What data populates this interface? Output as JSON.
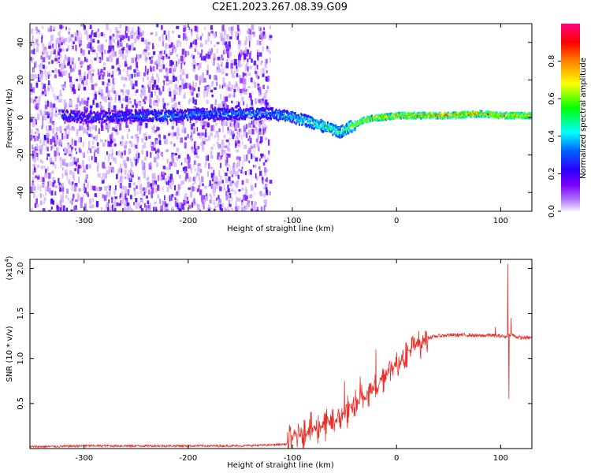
{
  "figure": {
    "title": "C2E1.2023.267.08.39.G09"
  },
  "chart_data": [
    {
      "type": "heatmap",
      "xlabel": "Height of straight line (km)",
      "ylabel": "Frequency (Hz)",
      "xlim": [
        -352,
        130
      ],
      "ylim": [
        -50,
        50
      ],
      "x_ticks": [
        -300,
        -200,
        -100,
        0,
        100
      ],
      "x_tick_labels": [
        "-300",
        "-200",
        "-100",
        "0",
        "100"
      ],
      "y_ticks": [
        -40,
        -20,
        0,
        20,
        40
      ],
      "y_tick_labels": [
        "-40",
        "-20",
        "0",
        "20",
        "40"
      ],
      "colorbar": {
        "label": "Normalized spectral amplitude",
        "range": [
          0,
          1
        ],
        "ticks": [
          0.0,
          0.2,
          0.4,
          0.6,
          0.8
        ],
        "tick_labels": [
          "0.0",
          "0.2",
          "0.4",
          "0.6",
          "0.8"
        ],
        "colors": [
          "#f8f0ff",
          "#7a00ff",
          "#0000ff",
          "#00ffff",
          "#00ff00",
          "#ffff00",
          "#ff8000",
          "#ff0000",
          "#ff0080"
        ]
      },
      "noise_region_x": [
        -352,
        -122
      ],
      "ridge": {
        "x": [
          -322,
          -300,
          -260,
          -220,
          -180,
          -120,
          -100,
          -80,
          -65,
          -55,
          -45,
          -30,
          -15,
          0,
          20,
          50,
          80,
          100,
          130
        ],
        "freq": [
          1,
          0,
          1,
          1,
          2,
          2,
          0,
          -3,
          -6,
          -8,
          -5,
          -1,
          0,
          1,
          1,
          1,
          2,
          1,
          1
        ],
        "amplitude": [
          0.35,
          0.3,
          0.35,
          0.4,
          0.4,
          0.45,
          0.5,
          0.55,
          0.6,
          0.65,
          0.7,
          0.85,
          0.9,
          0.92,
          0.95,
          0.95,
          0.95,
          0.95,
          0.92
        ]
      }
    },
    {
      "type": "line",
      "xlabel": "Height of straight line (km)",
      "ylabel": "SNR (10 * v/v)",
      "y_exponent_label": "(x10",
      "y_exponent_power": "4",
      "y_exponent_close": ")",
      "xlim": [
        -352,
        130
      ],
      "ylim": [
        0,
        2.1
      ],
      "x_ticks": [
        -300,
        -200,
        -100,
        0,
        100
      ],
      "x_tick_labels": [
        "-300",
        "-200",
        "-100",
        "0",
        "100"
      ],
      "y_ticks": [
        0.5,
        1.0,
        1.5,
        2.0
      ],
      "y_tick_labels": [
        "0.5",
        "1.0",
        "1.5",
        "2.0"
      ],
      "series": [
        {
          "color": "#e8302a",
          "x": [
            -352,
            -320,
            -300,
            -250,
            -200,
            -150,
            -120,
            -105,
            -100,
            -90,
            -80,
            -70,
            -60,
            -50,
            -40,
            -30,
            -20,
            -10,
            0,
            10,
            20,
            30,
            40,
            50,
            60,
            70,
            80,
            90,
            95,
            100,
            105,
            108,
            110,
            115,
            120,
            130
          ],
          "values": [
            0.02,
            0.025,
            0.03,
            0.03,
            0.03,
            0.03,
            0.04,
            0.05,
            0.12,
            0.18,
            0.22,
            0.26,
            0.3,
            0.38,
            0.48,
            0.58,
            0.7,
            0.84,
            0.95,
            1.06,
            1.16,
            1.23,
            1.25,
            1.26,
            1.26,
            1.26,
            1.25,
            1.26,
            1.25,
            1.25,
            1.24,
            1.26,
            1.27,
            1.24,
            1.23,
            1.23
          ]
        }
      ],
      "spikes": [
        {
          "x": -50,
          "value": 0.75
        },
        {
          "x": -35,
          "value": 0.8
        },
        {
          "x": -20,
          "value": 1.1
        },
        {
          "x": 95,
          "value": 1.35
        },
        {
          "x": 107,
          "value": 2.05
        },
        {
          "x": 108,
          "value": 0.55
        },
        {
          "x": 110,
          "value": 1.45
        }
      ]
    }
  ]
}
